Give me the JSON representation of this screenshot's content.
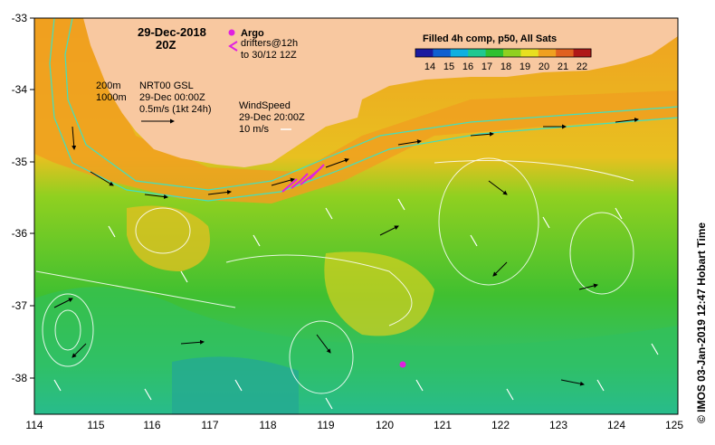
{
  "header": {
    "date": "29-Dec-2018",
    "time": "20Z"
  },
  "argo": {
    "label": "Argo",
    "drifters_line1": "drifters@12h",
    "drifters_line2": "to 30/12 12Z",
    "marker_color": "#e020e0"
  },
  "isobaths": {
    "line1": "200m",
    "line2": "1000m",
    "color": "#40e0c0"
  },
  "current_ref": {
    "line1": "NRT00 GSL",
    "line2": "29-Dec 00:00Z",
    "line3": "0.5m/s (1kt 24h)"
  },
  "wind_ref": {
    "line1": "WindSpeed",
    "line2": "29-Dec 20:00Z",
    "line3": "10 m/s"
  },
  "colorbar": {
    "title": "Filled 4h comp, p50, All Sats",
    "ticks": [
      "14",
      "15",
      "16",
      "17",
      "18",
      "19",
      "20",
      "21",
      "22"
    ],
    "colors": [
      "#1a1aa0",
      "#1060d0",
      "#10b0e0",
      "#20c890",
      "#30c030",
      "#90d020",
      "#e8e020",
      "#f0a020",
      "#e06020",
      "#b01818"
    ]
  },
  "axes": {
    "x_ticks": [
      "114",
      "115",
      "116",
      "117",
      "118",
      "119",
      "120",
      "121",
      "122",
      "123",
      "124",
      "125"
    ],
    "y_ticks": [
      "-33",
      "-34",
      "-35",
      "-36",
      "-37",
      "-38"
    ]
  },
  "credit": "© IMOS 03-Jan-2019 12:47 Hobart Time",
  "colors": {
    "land": "#f8c8a0",
    "warm": "#f0a020",
    "mid": "#90d020",
    "cool": "#30c030",
    "cold": "#20b8c0"
  }
}
